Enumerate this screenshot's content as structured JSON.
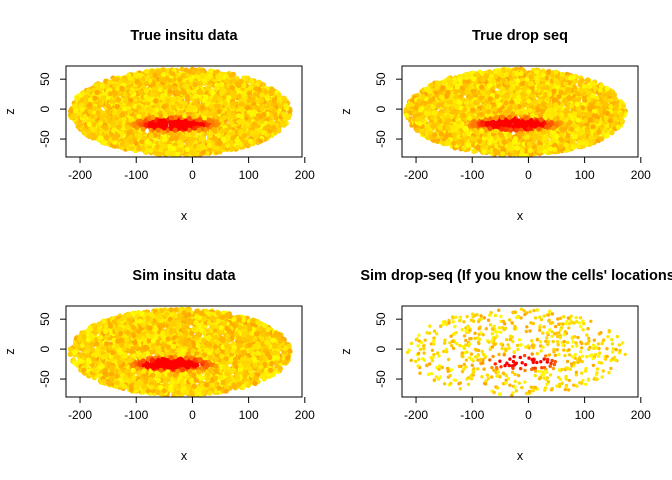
{
  "chart_data": [
    {
      "type": "scatter",
      "title": "True insitu data",
      "xlabel": "x",
      "ylabel": "z",
      "xlim": [
        -225,
        195
      ],
      "ylim": [
        -80,
        72
      ],
      "xticks": [
        -200,
        -100,
        0,
        100,
        200
      ],
      "yticks": [
        -50,
        0,
        50
      ],
      "ellipse": {
        "cx": -22,
        "cz": -5,
        "rx": 196,
        "rz": 72
      },
      "density": "dense",
      "colors": {
        "low": "#FFA500",
        "mid": "#FFD700",
        "high": "#FF0000",
        "bright": "#FFFF00"
      },
      "expression_center": {
        "x": -30,
        "z": -25,
        "rx": 75,
        "rz": 12
      }
    },
    {
      "type": "scatter",
      "title": "True drop seq",
      "xlabel": "x",
      "ylabel": "z",
      "xlim": [
        -225,
        195
      ],
      "ylim": [
        -80,
        72
      ],
      "xticks": [
        -200,
        -100,
        0,
        100,
        200
      ],
      "yticks": [
        -50,
        0,
        50
      ],
      "ellipse": {
        "cx": -22,
        "cz": -5,
        "rx": 196,
        "rz": 72
      },
      "density": "dense",
      "colors": {
        "low": "#FFA500",
        "mid": "#FFD700",
        "high": "#FF0000",
        "bright": "#FFFF00"
      },
      "expression_center": {
        "x": -25,
        "z": -25,
        "rx": 80,
        "rz": 12
      }
    },
    {
      "type": "scatter",
      "title": "Sim insitu data",
      "xlabel": "x",
      "ylabel": "z",
      "xlim": [
        -225,
        195
      ],
      "ylim": [
        -80,
        72
      ],
      "xticks": [
        -200,
        -100,
        0,
        100,
        200
      ],
      "yticks": [
        -50,
        0,
        50
      ],
      "ellipse": {
        "cx": -22,
        "cz": -5,
        "rx": 196,
        "rz": 72
      },
      "density": "dense",
      "colors": {
        "low": "#FFA500",
        "mid": "#FFD700",
        "high": "#FF0000",
        "bright": "#FFFF00"
      },
      "expression_center": {
        "x": -35,
        "z": -25,
        "rx": 75,
        "rz": 12
      }
    },
    {
      "type": "scatter",
      "title": "Sim drop-seq (If you know the cells' locations)",
      "xlabel": "x",
      "ylabel": "z",
      "xlim": [
        -225,
        195
      ],
      "ylim": [
        -80,
        72
      ],
      "xticks": [
        -200,
        -100,
        0,
        100,
        200
      ],
      "yticks": [
        -50,
        0,
        50
      ],
      "ellipse": {
        "cx": -22,
        "cz": -5,
        "rx": 196,
        "rz": 72
      },
      "density": "sparse",
      "colors": {
        "low": "#FFA500",
        "mid": "#FFD700",
        "high": "#FF0000",
        "bright": "#FFFF00"
      },
      "expression_center": {
        "x": -10,
        "z": -22,
        "rx": 70,
        "rz": 14
      }
    }
  ]
}
